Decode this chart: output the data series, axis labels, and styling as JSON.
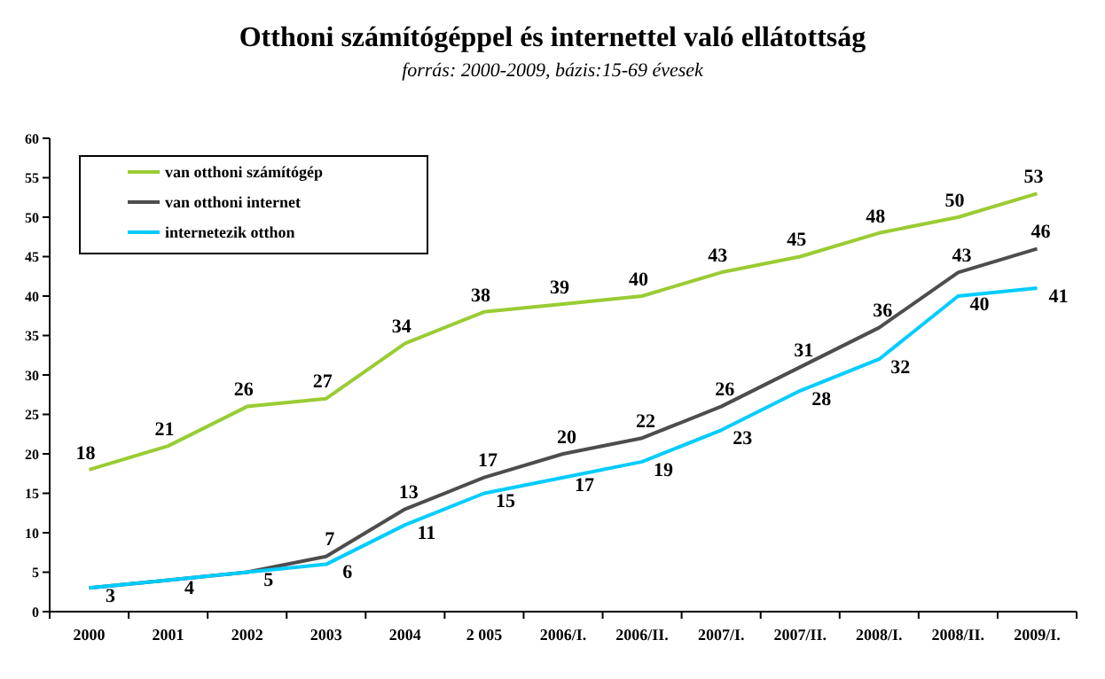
{
  "chart_data": {
    "type": "line",
    "title": "Otthoni számítógéppel és internettel való ellátottság",
    "subtitle": "forrás: 2000-2009, bázis:15-69 évesek",
    "categories": [
      "2000",
      "2001",
      "2002",
      "2003",
      "2004",
      "2 005",
      "2006/I.",
      "2006/II.",
      "2007/I.",
      "2007/II.",
      "2008/I.",
      "2008/II.",
      "2009/I."
    ],
    "series": [
      {
        "name": "van otthoni számítógép",
        "color": "#99cc33",
        "values": [
          18,
          21,
          26,
          27,
          34,
          38,
          39,
          40,
          43,
          45,
          48,
          50,
          53
        ],
        "value_labels": [
          "18",
          "21",
          "26",
          "27",
          "34",
          "38",
          "39",
          "40",
          "43",
          "45",
          "48",
          "50",
          "53"
        ]
      },
      {
        "name": "van otthoni internet",
        "color": "#4d4d4d",
        "values": [
          3,
          4,
          5,
          7,
          13,
          17,
          20,
          22,
          26,
          31,
          36,
          43,
          46
        ],
        "value_labels": [
          null,
          null,
          null,
          "7",
          "13",
          "17",
          "20",
          "22",
          "26",
          "31",
          "36",
          "43",
          "46"
        ]
      },
      {
        "name": "internetezik otthon",
        "color": "#00ccff",
        "values": [
          3,
          4,
          5,
          6,
          11,
          15,
          17,
          19,
          23,
          28,
          32,
          40,
          41
        ],
        "value_labels": [
          "3",
          "4",
          "5",
          "6",
          "11",
          "15",
          "17",
          "19",
          "23",
          "28",
          "32",
          "40",
          "41"
        ]
      }
    ],
    "ylim": [
      0,
      60
    ],
    "yticks": [
      0,
      5,
      10,
      15,
      20,
      25,
      30,
      35,
      40,
      45,
      50,
      55,
      60
    ],
    "grid": false,
    "legend": "top left",
    "marker": "none",
    "line_style": "solid"
  }
}
